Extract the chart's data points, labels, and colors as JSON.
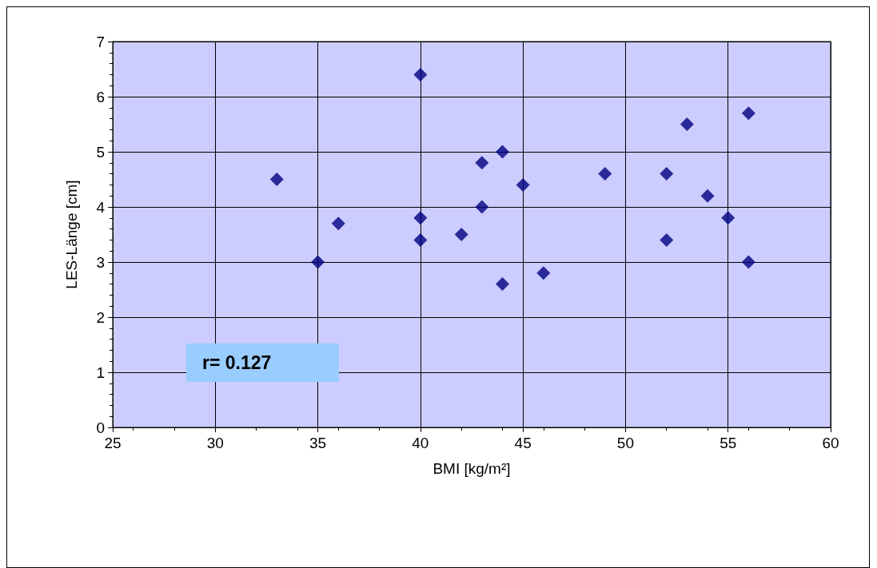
{
  "chart_data": {
    "type": "scatter",
    "xlabel": "BMI [kg/m²]",
    "ylabel": "LES-Länge [cm]",
    "annotations": [
      "r= 0.127"
    ],
    "x": [
      33,
      35,
      36,
      40,
      40,
      40,
      42,
      43,
      43,
      44,
      44,
      45,
      46,
      49,
      52,
      52,
      53,
      54,
      55,
      56,
      56
    ],
    "values": [
      4.5,
      3.0,
      3.7,
      6.4,
      3.8,
      3.4,
      3.5,
      4.8,
      4.0,
      5.0,
      2.6,
      4.4,
      2.8,
      4.6,
      4.6,
      3.4,
      5.5,
      4.2,
      3.8,
      5.7,
      3.0
    ],
    "color": "#000080",
    "marker": "diamond",
    "grid": true,
    "xlim": [
      25,
      60
    ],
    "xticks": [
      25,
      30,
      35,
      40,
      45,
      50,
      55,
      60
    ],
    "ylim": [
      0,
      7
    ],
    "yticks": [
      0,
      1,
      2,
      3,
      4,
      5,
      6,
      7
    ]
  }
}
